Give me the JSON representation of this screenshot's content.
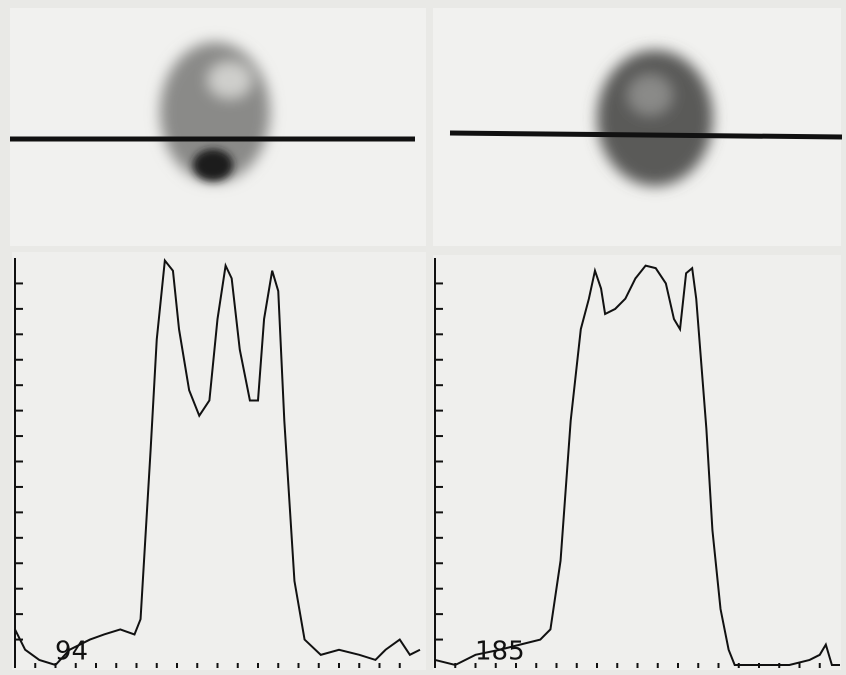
{
  "chart_data": [
    {
      "type": "line",
      "annotation": "94",
      "x": [
        0,
        0.5,
        1.2,
        2,
        2.7,
        3.7,
        4.4,
        5.2,
        5.9,
        6.2,
        6.7,
        7.0,
        7.4,
        7.8,
        8.1,
        8.6,
        9.1,
        9.6,
        10.0,
        10.4,
        10.7,
        11.1,
        11.6,
        12.0,
        12.3,
        12.7,
        13.0,
        13.3,
        13.8,
        14.3,
        15.1,
        16.0,
        17.0,
        17.8,
        18.3,
        19.0,
        19.5,
        20.0
      ],
      "values": [
        1.4,
        0.6,
        0.2,
        0,
        0.6,
        1.0,
        1.2,
        1.4,
        1.2,
        1.8,
        8.5,
        12.8,
        15.9,
        15.5,
        13.2,
        10.8,
        9.8,
        10.4,
        13.6,
        15.7,
        15.2,
        12.4,
        10.4,
        10.4,
        13.6,
        15.5,
        14.7,
        9.6,
        3.3,
        1.0,
        0.4,
        0.6,
        0.4,
        0.2,
        0.6,
        1.0,
        0.4,
        0.6
      ],
      "color": "#111111",
      "xlim": [
        0,
        20
      ],
      "ylim": [
        0,
        16
      ],
      "xticks": [
        1,
        2,
        3,
        4,
        5,
        6,
        7,
        8,
        9,
        10,
        11,
        12,
        13,
        14,
        15,
        16,
        17,
        18,
        19
      ],
      "yticks": [
        1,
        2,
        3,
        4,
        5,
        6,
        7,
        8,
        9,
        10,
        11,
        12,
        13,
        14,
        15
      ]
    },
    {
      "type": "line",
      "annotation": "185",
      "x": [
        0,
        1.0,
        2.0,
        3.2,
        4.2,
        5.2,
        5.7,
        6.2,
        6.7,
        7.2,
        7.6,
        7.9,
        8.2,
        8.4,
        8.9,
        9.4,
        9.9,
        10.4,
        10.9,
        11.4,
        11.8,
        12.1,
        12.4,
        12.7,
        12.9,
        13.4,
        13.7,
        14.1,
        14.5,
        14.8,
        16.0,
        17.5,
        18.5,
        19.0,
        19.3,
        19.6,
        20.0
      ],
      "values": [
        0.2,
        0,
        0.4,
        0.6,
        0.8,
        1.0,
        1.4,
        4.1,
        9.6,
        13.2,
        14.4,
        15.5,
        14.8,
        13.8,
        14.0,
        14.4,
        15.2,
        15.7,
        15.6,
        15.0,
        13.6,
        13.2,
        15.4,
        15.6,
        14.4,
        9.3,
        5.3,
        2.2,
        0.6,
        0,
        0,
        0,
        0.2,
        0.4,
        0.8,
        0,
        0
      ],
      "color": "#111111",
      "xlim": [
        0,
        20
      ],
      "ylim": [
        0,
        16
      ],
      "xticks": [
        1,
        2,
        3,
        4,
        5,
        6,
        7,
        8,
        9,
        10,
        11,
        12,
        13,
        14,
        15,
        16,
        17,
        18,
        19
      ],
      "yticks": [
        1,
        2,
        3,
        4,
        5,
        6,
        7,
        8,
        9,
        10,
        11,
        12,
        13,
        14,
        15
      ]
    }
  ]
}
